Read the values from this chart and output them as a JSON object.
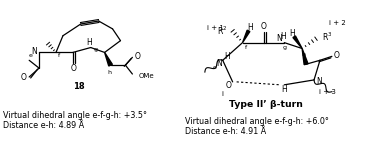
{
  "left_label_line1": "Virtual dihedral angle e-f-g-h: +3.5°",
  "left_label_line2": "Distance e-h: 4.89 Å",
  "right_label_line1": "Virtual dihedral angle e-f-g-h: +6.0°",
  "right_label_line2": "Distance e-h: 4.91 Å",
  "compound_label": "18",
  "right_title": "Type II’ β-turn",
  "bg_color": "#ffffff",
  "text_color": "#000000",
  "font_size_labels": 5.8,
  "font_size_title": 6.2,
  "font_size_small": 5.0,
  "font_size_atom": 5.5,
  "font_size_idx": 4.5
}
